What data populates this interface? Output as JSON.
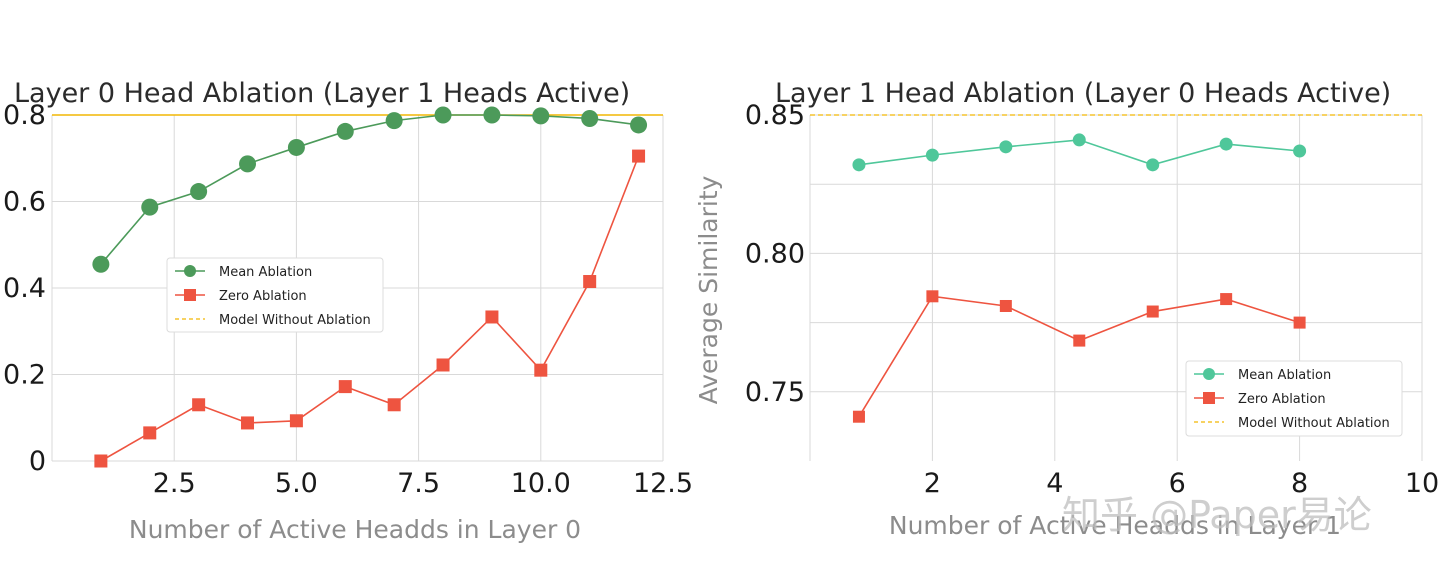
{
  "colors": {
    "mean_left": "#4c9a5a",
    "mean_right": "#4fc79a",
    "zero": "#ee5440",
    "baseline": "#f2b705",
    "grid": "#d9d9d9"
  },
  "watermark": "知乎 @Paper易论",
  "chart_data": [
    {
      "type": "line",
      "title": "Layer 0 Head Ablation (Layer 1 Heads Active)",
      "xlabel": "Number of Active Headds in Layer 0",
      "ylabel": "",
      "xlim": [
        0,
        12.5
      ],
      "ylim": [
        0,
        0.8
      ],
      "xticks": [
        2.5,
        5.0,
        7.5,
        10.0,
        12.5
      ],
      "xtick_labels": [
        "2.5",
        "5.0",
        "7.5",
        "10.0",
        "12.5"
      ],
      "yticks": [
        0,
        0.2,
        0.4,
        0.6,
        0.8
      ],
      "ytick_labels": [
        "0",
        "0.2",
        "0.4",
        "0.6",
        "0.8"
      ],
      "grid": true,
      "legend_position": "center-left",
      "legend": [
        "Mean Ablation",
        "Zero Ablation",
        "Model Without Ablation"
      ],
      "baseline": {
        "name": "Model Without Ablation",
        "value": 0.8
      },
      "series": [
        {
          "name": "Mean Ablation",
          "marker": "circle",
          "x": [
            1,
            2,
            3,
            4,
            5,
            6,
            7,
            8,
            9,
            10,
            11,
            12
          ],
          "y": [
            0.455,
            0.587,
            0.623,
            0.687,
            0.725,
            0.762,
            0.787,
            0.8,
            0.8,
            0.798,
            0.792,
            0.777
          ]
        },
        {
          "name": "Zero Ablation",
          "marker": "square",
          "x": [
            1,
            2,
            3,
            4,
            5,
            6,
            7,
            8,
            9,
            10,
            11,
            12
          ],
          "y": [
            0.0,
            0.065,
            0.13,
            0.088,
            0.093,
            0.172,
            0.13,
            0.222,
            0.333,
            0.21,
            0.415,
            0.705
          ]
        }
      ]
    },
    {
      "type": "line",
      "title": "Layer 1 Head Ablation (Layer 0 Heads Active)",
      "xlabel": "Number of Active Headds in Layer 1",
      "ylabel": "Average Similarity",
      "xlim": [
        0,
        10
      ],
      "ylim": [
        0.725,
        0.85
      ],
      "xticks": [
        2,
        4,
        6,
        8,
        10
      ],
      "xtick_labels": [
        "2",
        "4",
        "6",
        "8",
        "10"
      ],
      "yticks": [
        0.75,
        0.8,
        0.85
      ],
      "ytick_labels": [
        "0.75",
        "0.80",
        "0.85"
      ],
      "grid": true,
      "legend_position": "lower-right",
      "legend": [
        "Mean Ablation",
        "Zero Ablation",
        "Model Without Ablation"
      ],
      "baseline": {
        "name": "Model Without Ablation",
        "value": 0.85
      },
      "series": [
        {
          "name": "Mean Ablation",
          "marker": "circle",
          "x": [
            0.8,
            2.0,
            3.2,
            4.4,
            5.6,
            6.8,
            8.0
          ],
          "y": [
            0.832,
            0.8355,
            0.8385,
            0.841,
            0.832,
            0.8395,
            0.837
          ]
        },
        {
          "name": "Zero Ablation",
          "marker": "square",
          "x": [
            0.8,
            2.0,
            3.2,
            4.4,
            5.6,
            6.8,
            8.0
          ],
          "y": [
            0.741,
            0.7845,
            0.781,
            0.7685,
            0.779,
            0.7835,
            0.775
          ]
        }
      ]
    }
  ]
}
